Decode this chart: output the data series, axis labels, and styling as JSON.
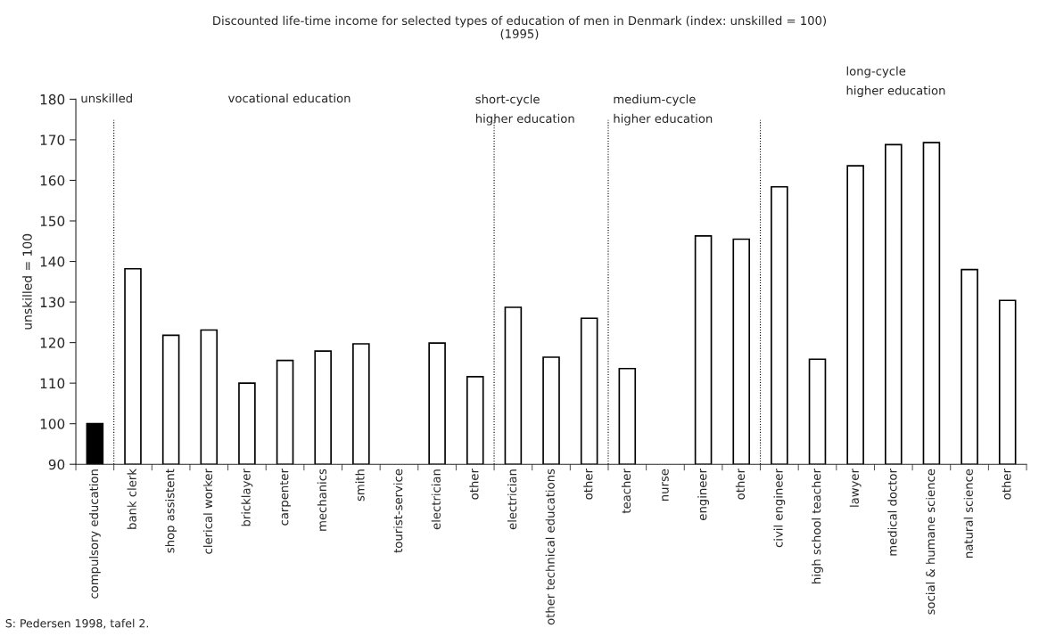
{
  "chart_data": {
    "type": "bar",
    "title": "Discounted life-time income for selected types of education of men in Denmark (index: unskilled = 100)\n(1995)",
    "ylabel": "unskilled = 100",
    "categories": [
      "compulsory education",
      "bank clerk",
      "shop assistent",
      "clerical worker",
      "bricklayer",
      "carpenter",
      "mechanics",
      "smith",
      "tourist-service",
      "electrician",
      "other",
      "electrician",
      "other technical educations",
      "other",
      "teacher",
      "nurse",
      "engineer",
      "other",
      "civil engineer",
      "high school teacher",
      "lawyer",
      "medical doctor",
      "social & humane science",
      "natural science",
      "other"
    ],
    "values": [
      100,
      138.2,
      121.8,
      123.1,
      110.0,
      115.6,
      117.9,
      119.7,
      null,
      119.9,
      111.6,
      128.7,
      116.4,
      126.0,
      113.6,
      null,
      146.3,
      145.5,
      158.4,
      115.9,
      163.6,
      168.8,
      169.3,
      138.0,
      130.4
    ],
    "colors": [
      "#000000",
      "#ffffff",
      "#ffffff",
      "#ffffff",
      "#ffffff",
      "#ffffff",
      "#ffffff",
      "#ffffff",
      "#ffffff",
      "#ffffff",
      "#ffffff",
      "#ffffff",
      "#ffffff",
      "#ffffff",
      "#ffffff",
      "#ffffff",
      "#ffffff",
      "#ffffff",
      "#ffffff",
      "#ffffff",
      "#ffffff",
      "#ffffff",
      "#ffffff",
      "#ffffff",
      "#ffffff"
    ],
    "ylim": [
      90,
      180
    ],
    "yticks": [
      90,
      100,
      110,
      120,
      130,
      140,
      150,
      160,
      170,
      180
    ],
    "grid": false,
    "annotations": [
      "unskilled",
      "vocational education",
      "short-cycle\nhigher education",
      "medium-cycle\nhigher education",
      "long-cycle\nhigher education",
      "S: Pedersen 1998, tafel 2."
    ]
  }
}
